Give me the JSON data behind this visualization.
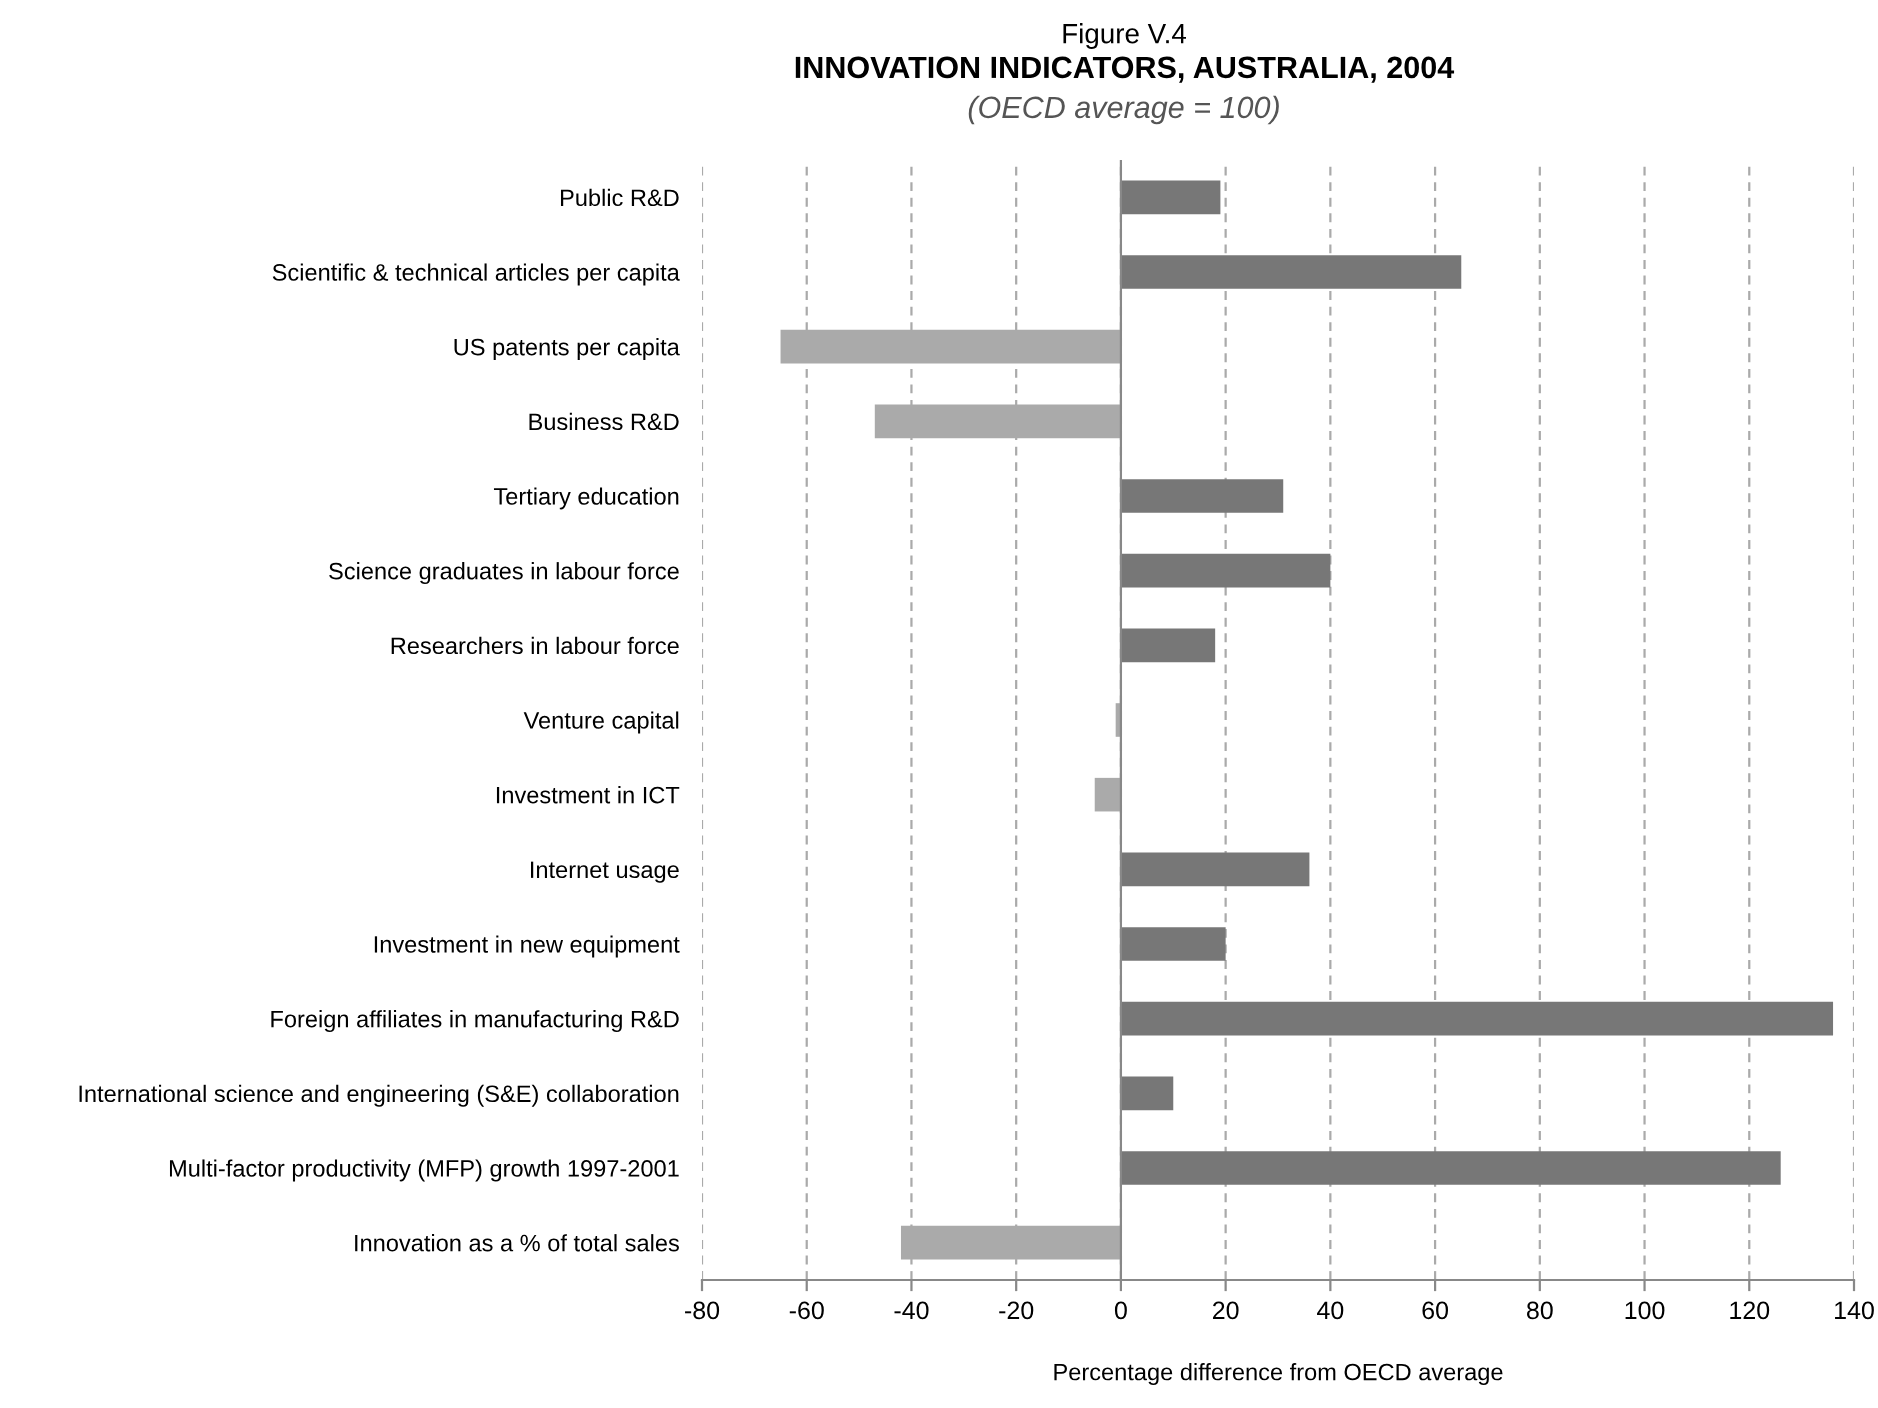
{
  "chart_data": {
    "type": "bar",
    "orientation": "horizontal",
    "title": "INNOVATION INDICATORS, AUSTRALIA, 2004",
    "subtitle": "(OECD average = 100)",
    "annotations": [
      "Figure V.4"
    ],
    "xlabel": "Percentage difference from OECD average",
    "categories": [
      "Public R&D",
      "Scientific & technical articles per capita",
      "US patents per capita",
      "Business R&D",
      "Tertiary education",
      "Science graduates in labour force",
      "Researchers in labour force",
      "Venture capital",
      "Investment in ICT",
      "Internet usage",
      "Investment in new equipment",
      "Foreign affiliates in manufacturing R&D",
      "International science and engineering (S&E) collaboration",
      "Multi-factor productivity (MFP) growth 1997-2001",
      "Innovation as a % of total sales"
    ],
    "values": [
      19,
      65,
      -65,
      -47,
      31,
      40,
      18,
      -1,
      -5,
      36,
      20,
      136,
      10,
      126,
      -42
    ],
    "colors": [
      "#777777",
      "#777777",
      "#aaaaaa",
      "#aaaaaa",
      "#777777",
      "#777777",
      "#777777",
      "#aaaaaa",
      "#aaaaaa",
      "#777777",
      "#777777",
      "#777777",
      "#777777",
      "#777777",
      "#aaaaaa"
    ],
    "xlim": [
      -80,
      140
    ],
    "xticks": [
      -80,
      -60,
      -40,
      -20,
      0,
      20,
      40,
      60,
      80,
      100,
      120,
      140
    ],
    "grid": "x",
    "legend": false
  }
}
